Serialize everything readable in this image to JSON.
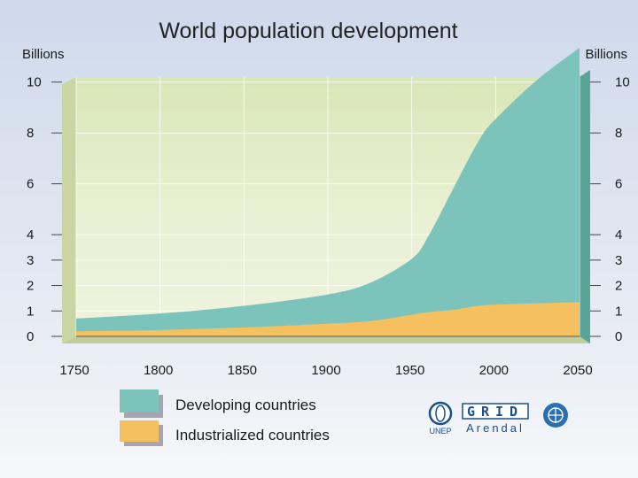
{
  "chart_data": {
    "type": "area",
    "title": "World population development",
    "ylabel_left": "Billions",
    "ylabel_right": "Billions",
    "x_ticks": [
      "1750",
      "1800",
      "1850",
      "1900",
      "1950",
      "2000",
      "2050"
    ],
    "y_ticks_left": [
      "0",
      "1",
      "2",
      "3",
      "4",
      "6",
      "8",
      "10"
    ],
    "y_ticks_right": [
      "0",
      "1",
      "2",
      "3",
      "4",
      "6",
      "8",
      "10"
    ],
    "xlim": [
      1750,
      2050
    ],
    "ylim": [
      0,
      10.2
    ],
    "stacked": true,
    "x": [
      1750,
      1800,
      1850,
      1900,
      1925,
      1950,
      1960,
      1975,
      1990,
      2000,
      2025,
      2050
    ],
    "series": [
      {
        "name": "Industrialized countries",
        "color": "#f5c060",
        "values": [
          0.2,
          0.25,
          0.35,
          0.5,
          0.6,
          0.85,
          0.95,
          1.05,
          1.2,
          1.25,
          1.3,
          1.35
        ]
      },
      {
        "name": "Developing countries",
        "color": "#7cc4bb",
        "values": [
          0.5,
          0.65,
          0.85,
          1.15,
          1.5,
          2.2,
          3.0,
          4.8,
          6.5,
          7.3,
          8.8,
          10.0
        ]
      }
    ]
  },
  "legend": {
    "developing_label": "Developing countries",
    "industrialized_label": "Industrialized countries"
  },
  "logos": {
    "unep": "UNEP",
    "grid": "GRID",
    "arendal": "Arendal"
  }
}
